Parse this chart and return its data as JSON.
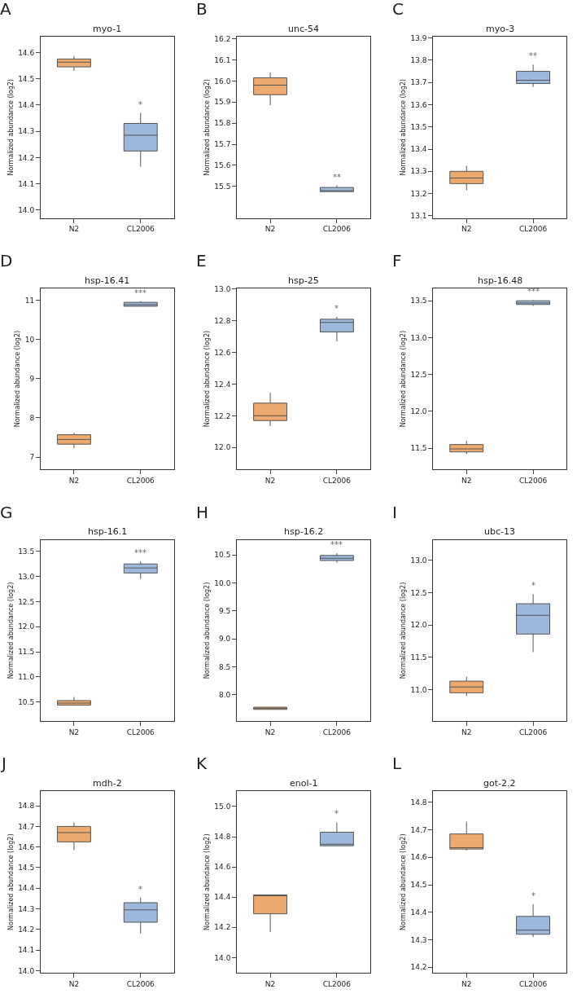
{
  "chart_data": [
    {
      "type": "box",
      "title": "myo-1",
      "ylabel": "Normalized abundance (log2)",
      "categories": [
        "N2",
        "CL2006"
      ],
      "colors": [
        "#eeaa6e",
        "#9db7dd"
      ],
      "ylim": [
        13.97,
        14.66
      ],
      "yticks": [
        {
          "value": 14,
          "label": "14.0"
        },
        14.1,
        14.2,
        14.3,
        14.4,
        14.5,
        14.6
      ],
      "boxes": [
        {
          "low": 14.53,
          "q1": 14.545,
          "median": 14.563,
          "q3": 14.575,
          "high": 14.585
        },
        {
          "low": 14.165,
          "q1": 14.225,
          "median": 14.285,
          "q3": 14.33,
          "high": 14.37
        }
      ],
      "annotations": [
        "A",
        "*"
      ]
    },
    {
      "type": "box",
      "title": "unc-54",
      "ylabel": "Normalized abundance (log2)",
      "categories": [
        "N2",
        "CL2006"
      ],
      "colors": [
        "#eeaa6e",
        "#9db7dd"
      ],
      "ylim": [
        15.35,
        16.21
      ],
      "yticks": [
        15.5,
        15.6,
        15.7,
        15.8,
        15.9,
        {
          "value": 16,
          "label": "16.0"
        },
        16.1,
        16.2
      ],
      "boxes": [
        {
          "low": 15.885,
          "q1": 15.935,
          "median": 15.98,
          "q3": 16.015,
          "high": 16.04
        },
        {
          "low": 15.475,
          "q1": 15.475,
          "median": 15.48,
          "q3": 15.495,
          "high": 15.505
        }
      ],
      "annotations": [
        "B",
        "**"
      ]
    },
    {
      "type": "box",
      "title": "myo-3",
      "ylabel": "Normalized abundance (log2)",
      "categories": [
        "N2",
        "CL2006"
      ],
      "colors": [
        "#eeaa6e",
        "#9db7dd"
      ],
      "ylim": [
        13.09,
        13.906
      ],
      "yticks": [
        13.1,
        13.2,
        13.3,
        13.4,
        13.5,
        13.6,
        13.7,
        13.8,
        13.9
      ],
      "boxes": [
        {
          "low": 13.215,
          "q1": 13.245,
          "median": 13.27,
          "q3": 13.3,
          "high": 13.325
        },
        {
          "low": 13.68,
          "q1": 13.695,
          "median": 13.71,
          "q3": 13.75,
          "high": 13.78
        }
      ],
      "annotations": [
        "C",
        "**"
      ]
    },
    {
      "type": "box",
      "title": "hsp-16.41",
      "ylabel": "Normalized abundance (log2)",
      "categories": [
        "N2",
        "CL2006"
      ],
      "colors": [
        "#eeaa6e",
        "#9db7dd"
      ],
      "ylim": [
        6.68,
        11.31
      ],
      "yticks": [
        7,
        8,
        9,
        10,
        11
      ],
      "boxes": [
        {
          "low": 7.22,
          "q1": 7.33,
          "median": 7.45,
          "q3": 7.57,
          "high": 7.62
        },
        {
          "low": 10.85,
          "q1": 10.85,
          "median": 10.89,
          "q3": 10.95,
          "high": 10.98
        }
      ],
      "annotations": [
        "D",
        "***"
      ]
    },
    {
      "type": "box",
      "title": "hsp-25",
      "ylabel": "Normalized abundance (log2)",
      "categories": [
        "N2",
        "CL2006"
      ],
      "colors": [
        "#eeaa6e",
        "#9db7dd"
      ],
      "ylim": [
        11.86,
        13.006
      ],
      "yticks": [
        {
          "value": 12,
          "label": "12.0"
        },
        12.2,
        12.4,
        12.6,
        12.8,
        {
          "value": 13,
          "label": "13.0"
        }
      ],
      "boxes": [
        {
          "low": 12.135,
          "q1": 12.17,
          "median": 12.2,
          "q3": 12.28,
          "high": 12.345
        },
        {
          "low": 12.67,
          "q1": 12.73,
          "median": 12.79,
          "q3": 12.81,
          "high": 12.825
        }
      ],
      "annotations": [
        "E",
        "*"
      ]
    },
    {
      "type": "box",
      "title": "hsp-16.48",
      "ylabel": "Normalized abundance (log2)",
      "categories": [
        "N2",
        "CL2006"
      ],
      "colors": [
        "#eeaa6e",
        "#9db7dd"
      ],
      "ylim": [
        11.21,
        13.67
      ],
      "yticks": [
        11.5,
        {
          "value": 12,
          "label": "12.0"
        },
        12.5,
        {
          "value": 13,
          "label": "13.0"
        },
        13.5
      ],
      "boxes": [
        {
          "low": 11.42,
          "q1": 11.45,
          "median": 11.49,
          "q3": 11.55,
          "high": 11.6
        },
        {
          "low": 13.43,
          "q1": 13.45,
          "median": 13.47,
          "q3": 13.5,
          "high": 13.51
        }
      ],
      "annotations": [
        "F",
        "***"
      ]
    },
    {
      "type": "box",
      "title": "hsp-16.1",
      "ylabel": "Normalized abundance (log2)",
      "categories": [
        "N2",
        "CL2006"
      ],
      "colors": [
        "#eeaa6e",
        "#9db7dd"
      ],
      "ylim": [
        10.12,
        13.73
      ],
      "yticks": [
        10.5,
        {
          "value": 11,
          "label": "11.0"
        },
        11.5,
        {
          "value": 12,
          "label": "12.0"
        },
        12.5,
        {
          "value": 13,
          "label": "13.0"
        },
        13.5
      ],
      "boxes": [
        {
          "low": 10.44,
          "q1": 10.44,
          "median": 10.48,
          "q3": 10.53,
          "high": 10.6
        },
        {
          "low": 12.95,
          "q1": 13.07,
          "median": 13.17,
          "q3": 13.25,
          "high": 13.3
        }
      ],
      "annotations": [
        "G",
        "***"
      ]
    },
    {
      "type": "box",
      "title": "hsp-16.2",
      "ylabel": "Normalized abundance (log2)",
      "categories": [
        "N2",
        "CL2006"
      ],
      "colors": [
        "#eeaa6e",
        "#9db7dd"
      ],
      "ylim": [
        7.53,
        10.77
      ],
      "yticks": [
        {
          "value": 8,
          "label": "8.0"
        },
        8.5,
        {
          "value": 9,
          "label": "9.0"
        },
        9.5,
        {
          "value": 10,
          "label": "10.0"
        },
        10.5
      ],
      "boxes": [
        {
          "low": 7.74,
          "q1": 7.74,
          "median": 7.76,
          "q3": 7.78,
          "high": 7.78
        },
        {
          "low": 10.36,
          "q1": 10.4,
          "median": 10.44,
          "q3": 10.49,
          "high": 10.53
        }
      ],
      "annotations": [
        "H",
        "***"
      ]
    },
    {
      "type": "box",
      "title": "ubc-13",
      "ylabel": "Normalized abundance (log2)",
      "categories": [
        "N2",
        "CL2006"
      ],
      "colors": [
        "#eeaa6e",
        "#9db7dd"
      ],
      "ylim": [
        10.51,
        13.32
      ],
      "yticks": [
        {
          "value": 11,
          "label": "11.0"
        },
        11.5,
        {
          "value": 12,
          "label": "12.0"
        },
        12.5,
        {
          "value": 13,
          "label": "13.0"
        }
      ],
      "boxes": [
        {
          "low": 10.9,
          "q1": 10.95,
          "median": 11.04,
          "q3": 11.13,
          "high": 11.2
        },
        {
          "low": 11.58,
          "q1": 11.86,
          "median": 12.15,
          "q3": 12.33,
          "high": 12.48
        }
      ],
      "annotations": [
        "I",
        "*"
      ]
    },
    {
      "type": "box",
      "title": "mdh-2",
      "ylabel": "Normalized abundance (log2)",
      "categories": [
        "N2",
        "CL2006"
      ],
      "colors": [
        "#eeaa6e",
        "#9db7dd"
      ],
      "ylim": [
        13.99,
        14.87
      ],
      "yticks": [
        {
          "value": 14,
          "label": "14.0"
        },
        14.1,
        14.2,
        14.3,
        14.4,
        14.5,
        14.6,
        14.7,
        14.8
      ],
      "boxes": [
        {
          "low": 14.585,
          "q1": 14.625,
          "median": 14.67,
          "q3": 14.7,
          "high": 14.72
        },
        {
          "low": 14.18,
          "q1": 14.235,
          "median": 14.295,
          "q3": 14.33,
          "high": 14.355
        }
      ],
      "annotations": [
        "J",
        "*"
      ]
    },
    {
      "type": "box",
      "title": "enol-1",
      "ylabel": "Normalized abundance (log2)",
      "categories": [
        "N2",
        "CL2006"
      ],
      "colors": [
        "#eeaa6e",
        "#9db7dd"
      ],
      "ylim": [
        13.9,
        15.1
      ],
      "yticks": [
        {
          "value": 14,
          "label": "14.0"
        },
        14.2,
        14.4,
        14.6,
        14.8,
        {
          "value": 15,
          "label": "15.0"
        }
      ],
      "boxes": [
        {
          "low": 14.17,
          "q1": 14.29,
          "median": 14.41,
          "q3": 14.415,
          "high": 14.415
        },
        {
          "low": 14.74,
          "q1": 14.74,
          "median": 14.75,
          "q3": 14.83,
          "high": 14.895
        }
      ],
      "annotations": [
        "K",
        "*"
      ]
    },
    {
      "type": "box",
      "title": "got-2.2",
      "ylabel": "Normalized abundance (log2)",
      "categories": [
        "N2",
        "CL2006"
      ],
      "colors": [
        "#eeaa6e",
        "#9db7dd"
      ],
      "ylim": [
        14.18,
        14.84
      ],
      "yticks": [
        14.2,
        14.3,
        14.4,
        14.5,
        14.6,
        14.7,
        14.8
      ],
      "boxes": [
        {
          "low": 14.625,
          "q1": 14.63,
          "median": 14.635,
          "q3": 14.685,
          "high": 14.73
        },
        {
          "low": 14.31,
          "q1": 14.32,
          "median": 14.335,
          "q3": 14.385,
          "high": 14.43
        }
      ],
      "annotations": [
        "L",
        "*"
      ]
    }
  ]
}
